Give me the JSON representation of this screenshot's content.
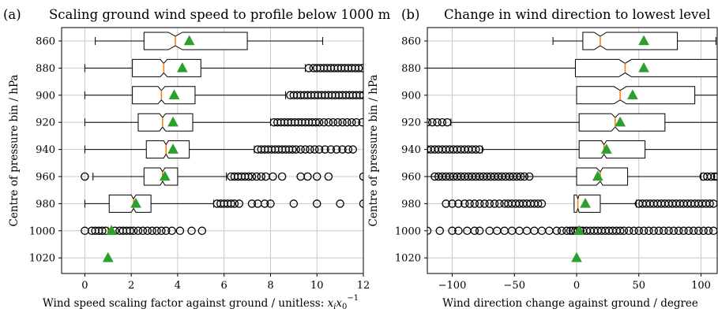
{
  "chart_data": [
    {
      "type": "box",
      "panel_label": "(a)",
      "title": "Scaling ground wind speed to profile below 1000 m",
      "xlabel": "Wind speed scaling factor against ground / unitless:",
      "xlabel_math": "x",
      "xlabel_math_sub": "i",
      "xlabel_math2": "x",
      "xlabel_math2_sub": "0",
      "xlabel_math2_sup": "−1",
      "ylabel": "Centre of pressure bin / hPa",
      "xlim": [
        -1,
        12
      ],
      "xticks": [
        0,
        2,
        4,
        6,
        8,
        10,
        12
      ],
      "xtick_labels": [
        "0",
        "2",
        "4",
        "6",
        "8",
        "10",
        "12"
      ],
      "categories": [
        "860",
        "880",
        "900",
        "920",
        "940",
        "960",
        "980",
        "1000",
        "1020"
      ],
      "grid": true,
      "boxes": [
        {
          "category": "860",
          "whislo": 0.45,
          "q1": 2.55,
          "med": 3.9,
          "q3": 7.0,
          "whishi": 10.25,
          "mean": 4.5,
          "notch_lo": 3.6,
          "notch_hi": 4.2,
          "fliers": []
        },
        {
          "category": "880",
          "whislo": 0.0,
          "q1": 2.05,
          "med": 3.4,
          "q3": 5.0,
          "whishi": 9.5,
          "mean": 4.2,
          "notch_lo": 3.25,
          "notch_hi": 3.55,
          "fliers": [
            9.65,
            9.85,
            10.0,
            10.15,
            10.3,
            10.45,
            10.6,
            10.75,
            10.9,
            11.05,
            11.2,
            11.35,
            11.5,
            11.65,
            11.8,
            11.95
          ]
        },
        {
          "category": "900",
          "whislo": 0.0,
          "q1": 2.05,
          "med": 3.3,
          "q3": 4.75,
          "whishi": 8.65,
          "mean": 3.85,
          "notch_lo": 3.15,
          "notch_hi": 3.45,
          "fliers": [
            8.85,
            9.0,
            9.15,
            9.3,
            9.45,
            9.6,
            9.75,
            9.9,
            10.05,
            10.2,
            10.35,
            10.5,
            10.65,
            10.8,
            10.95,
            11.1,
            11.25,
            11.4,
            11.55,
            11.7,
            11.85,
            12.0
          ]
        },
        {
          "category": "920",
          "whislo": 0.0,
          "q1": 2.3,
          "med": 3.35,
          "q3": 4.65,
          "whishi": 8.0,
          "mean": 3.8,
          "notch_lo": 3.22,
          "notch_hi": 3.48,
          "fliers": [
            8.15,
            8.3,
            8.45,
            8.6,
            8.75,
            8.9,
            9.05,
            9.2,
            9.35,
            9.5,
            9.65,
            9.8,
            9.95,
            10.1,
            10.3,
            10.5,
            10.7,
            10.9,
            11.1,
            11.3,
            11.5,
            11.7,
            11.95
          ]
        },
        {
          "category": "940",
          "whislo": 0.0,
          "q1": 2.65,
          "med": 3.5,
          "q3": 4.5,
          "whishi": 7.3,
          "mean": 3.8,
          "notch_lo": 3.4,
          "notch_hi": 3.6,
          "fliers": [
            7.45,
            7.6,
            7.75,
            7.9,
            8.05,
            8.2,
            8.35,
            8.5,
            8.65,
            8.8,
            8.95,
            9.1,
            9.3,
            9.5,
            9.7,
            9.9,
            10.1,
            10.35,
            10.6,
            10.85,
            11.1,
            11.35,
            11.55
          ]
        },
        {
          "category": "960",
          "whislo": 0.35,
          "q1": 2.55,
          "med": 3.35,
          "q3": 4.0,
          "whishi": 6.1,
          "mean": 3.45,
          "notch_lo": 3.25,
          "notch_hi": 3.45,
          "fliers": [
            0.0,
            6.3,
            6.45,
            6.6,
            6.75,
            6.9,
            7.05,
            7.2,
            7.4,
            7.6,
            7.8,
            8.1,
            8.5,
            9.3,
            9.6,
            10.0,
            10.5,
            12.0
          ]
        },
        {
          "category": "980",
          "whislo": 0.0,
          "q1": 1.05,
          "med": 2.1,
          "q3": 2.85,
          "whishi": 5.55,
          "mean": 2.2,
          "notch_lo": 2.0,
          "notch_hi": 2.2,
          "fliers": [
            5.7,
            5.85,
            6.0,
            6.15,
            6.3,
            6.45,
            6.65,
            7.2,
            7.45,
            7.75,
            8.0,
            9.0,
            10.0,
            11.0,
            12.0
          ]
        },
        {
          "category": "1000",
          "whislo": 1.0,
          "q1": 1.0,
          "med": 1.0,
          "q3": 1.0,
          "whishi": 1.0,
          "mean": 1.15,
          "notch_lo": 1.0,
          "notch_hi": 1.0,
          "fliers": [
            0.0,
            0.3,
            0.45,
            0.6,
            0.75,
            0.9,
            1.3,
            1.5,
            1.65,
            1.8,
            1.95,
            2.1,
            2.3,
            2.5,
            2.7,
            2.9,
            3.1,
            3.3,
            3.5,
            3.75,
            4.1,
            4.6,
            5.05
          ]
        },
        {
          "category": "1020",
          "whislo": 1.0,
          "q1": 1.0,
          "med": 1.0,
          "q3": 1.0,
          "whishi": 1.0,
          "mean": 1.0,
          "notch_lo": 1.0,
          "notch_hi": 1.0,
          "fliers": []
        }
      ]
    },
    {
      "type": "box",
      "panel_label": "(b)",
      "title": "Change in wind direction to lowest level",
      "xlabel": "Wind direction change against ground / degree",
      "ylabel": "Centre of pressure bin / hPa",
      "xlim": [
        -120,
        113
      ],
      "xticks": [
        -100,
        -50,
        0,
        50,
        100
      ],
      "xtick_labels": [
        "−100",
        "−50",
        "0",
        "50",
        "100"
      ],
      "categories": [
        "860",
        "880",
        "900",
        "920",
        "940",
        "960",
        "980",
        "1000",
        "1020"
      ],
      "grid": true,
      "boxes": [
        {
          "category": "860",
          "whislo": -19,
          "q1": 5,
          "med": 19,
          "q3": 81,
          "whishi": 112,
          "mean": 54,
          "notch_lo": 14,
          "notch_hi": 24,
          "fliers": []
        },
        {
          "category": "880",
          "whislo": -120,
          "q1": -1,
          "med": 39,
          "q3": 113,
          "whishi": 113,
          "mean": 54,
          "notch_lo": 34,
          "notch_hi": 44,
          "fliers": []
        },
        {
          "category": "900",
          "whislo": 0,
          "q1": 0,
          "med": 35,
          "q3": 95,
          "whishi": 113,
          "mean": 45,
          "notch_lo": 30,
          "notch_hi": 40,
          "fliers": []
        },
        {
          "category": "920",
          "whislo": -101,
          "q1": 2,
          "med": 31,
          "q3": 71,
          "whishi": 113,
          "mean": 35,
          "notch_lo": 28,
          "notch_hi": 34,
          "fliers": [
            -120,
            -116,
            -112,
            -108,
            -104
          ]
        },
        {
          "category": "940",
          "whislo": -76,
          "q1": 2,
          "med": 22,
          "q3": 55,
          "whishi": 113,
          "mean": 24,
          "notch_lo": 20,
          "notch_hi": 24,
          "fliers": [
            -120,
            -117,
            -114,
            -111,
            -108,
            -105,
            -102,
            -99,
            -96,
            -93,
            -90,
            -87,
            -84,
            -81,
            -78
          ]
        },
        {
          "category": "960",
          "whislo": -120,
          "q1": 0,
          "med": 19,
          "q3": 41,
          "whishi": 100,
          "mean": 17,
          "notch_lo": 16,
          "notch_hi": 21,
          "fliers": [
            -114,
            -111,
            -108,
            -105,
            -102,
            -99,
            -96,
            -93,
            -90,
            -87,
            -84,
            -81,
            -78,
            -75,
            -72,
            -69,
            -66,
            -63,
            -60,
            -57,
            -54,
            -51,
            -48,
            -45,
            -42,
            -38,
            102,
            105,
            108,
            111,
            113
          ]
        },
        {
          "category": "980",
          "whislo": -2,
          "q1": -2,
          "med": 1,
          "q3": 19,
          "whishi": 48,
          "mean": 7,
          "notch_lo": 0,
          "notch_hi": 2,
          "fliers": [
            -105,
            -100,
            -95,
            -90,
            -86,
            -82,
            -78,
            -74,
            -70,
            -66,
            -62,
            -58,
            -55,
            -52,
            -49,
            -46,
            -43,
            -40,
            -37,
            -34,
            -31,
            -28,
            50,
            53,
            56,
            59,
            62,
            65,
            68,
            71,
            74,
            77,
            80,
            83,
            86,
            89,
            92,
            95,
            98,
            101,
            104,
            107,
            110
          ]
        },
        {
          "category": "1000",
          "whislo": 0,
          "q1": 0,
          "med": 0,
          "q3": 0,
          "whishi": 0,
          "mean": 2,
          "notch_lo": 0,
          "notch_hi": 0,
          "fliers": [
            -120,
            -110,
            -100,
            -95,
            -88,
            -82,
            -78,
            -70,
            -64,
            -58,
            -52,
            -46,
            -40,
            -34,
            -28,
            -22,
            -16,
            -12,
            -8,
            -5,
            -3,
            -1,
            1,
            3,
            5,
            8,
            11,
            14,
            17,
            20,
            23,
            26,
            29,
            32,
            35,
            38,
            42,
            46,
            50,
            54,
            58,
            62,
            66,
            70,
            74,
            78,
            82,
            86,
            90,
            94,
            98,
            102,
            106,
            110
          ]
        },
        {
          "category": "1020",
          "whislo": 0,
          "q1": 0,
          "med": 0,
          "q3": 0,
          "whishi": 0,
          "mean": 0,
          "notch_lo": 0,
          "notch_hi": 0,
          "fliers": []
        }
      ]
    }
  ]
}
